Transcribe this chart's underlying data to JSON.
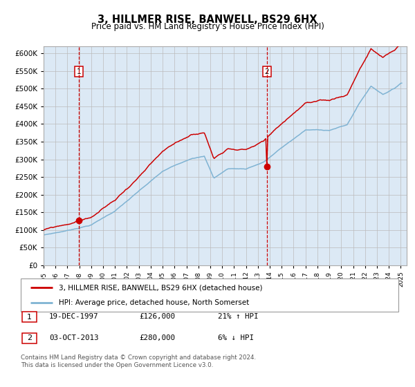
{
  "title": "3, HILLMER RISE, BANWELL, BS29 6HX",
  "subtitle": "Price paid vs. HM Land Registry's House Price Index (HPI)",
  "plot_bg_color": "#dce9f5",
  "line_color_hpi": "#7fb3d3",
  "line_color_price": "#cc0000",
  "ylim": [
    0,
    620000
  ],
  "yticks": [
    0,
    50000,
    100000,
    150000,
    200000,
    250000,
    300000,
    350000,
    400000,
    450000,
    500000,
    550000,
    600000
  ],
  "sale1_date": "19-DEC-1997",
  "sale1_price": 126000,
  "sale1_t": 1997.958,
  "sale2_date": "03-OCT-2013",
  "sale2_price": 280000,
  "sale2_t": 2013.75,
  "legend_line1": "3, HILLMER RISE, BANWELL, BS29 6HX (detached house)",
  "legend_line2": "HPI: Average price, detached house, North Somerset",
  "footnote1": "Contains HM Land Registry data © Crown copyright and database right 2024.",
  "footnote2": "This data is licensed under the Open Government Licence v3.0.",
  "vline_color": "#cc0000",
  "marker_color": "#cc0000",
  "box_color": "#cc0000",
  "sale1_hpi_pct": "21% ↑ HPI",
  "sale2_hpi_pct": "6% ↓ HPI"
}
